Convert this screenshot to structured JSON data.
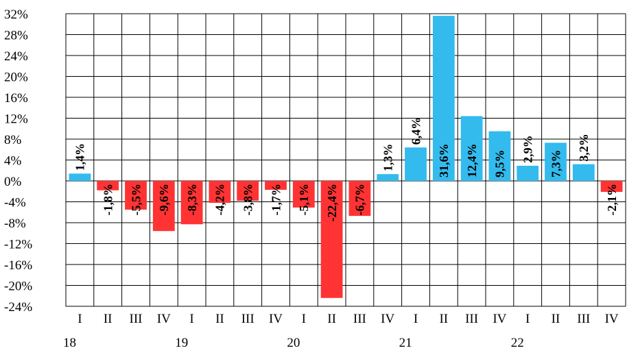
{
  "chart_data": {
    "type": "bar",
    "categories": [
      "I",
      "II",
      "III",
      "IV",
      "I",
      "II",
      "III",
      "IV",
      "I",
      "II",
      "III",
      "IV",
      "I",
      "II",
      "III",
      "IV",
      "I",
      "II",
      "III",
      "IV"
    ],
    "year_labels": [
      {
        "label": "18",
        "index": 0
      },
      {
        "label": "19",
        "index": 4
      },
      {
        "label": "20",
        "index": 8
      },
      {
        "label": "21",
        "index": 12
      },
      {
        "label": "22",
        "index": 16
      }
    ],
    "values": [
      1.4,
      -1.8,
      -5.5,
      -9.6,
      -8.3,
      -4.2,
      -3.8,
      -1.7,
      -5.1,
      -22.4,
      -6.7,
      1.3,
      6.4,
      31.6,
      12.4,
      9.5,
      2.9,
      7.3,
      3.2,
      -2.1
    ],
    "data_labels": [
      "1,4%",
      "-1,8%",
      "-5,5%",
      "-9,6%",
      "-8,3%",
      "-4,2%",
      "-3,8%",
      "-1,7%",
      "-5,1%",
      "-22,4%",
      "-6,7%",
      "1,3%",
      "6,4%",
      "31,6%",
      "12,4%",
      "9,5%",
      "2,9%",
      "7,3%",
      "3,2%",
      "-2,1%"
    ],
    "y_ticks": [
      32,
      28,
      24,
      20,
      16,
      12,
      8,
      4,
      0,
      -4,
      -8,
      -12,
      -16,
      -20,
      -24
    ],
    "y_tick_labels": [
      "32%",
      "28%",
      "24%",
      "20%",
      "16%",
      "12%",
      "8%",
      "4%",
      "0%",
      "-4%",
      "-8%",
      "-12%",
      "-16%",
      "-20%",
      "-24%"
    ],
    "ylim": [
      -24,
      32
    ],
    "grid": true,
    "colors": {
      "positive": "#33bbee",
      "negative": "#ff3333"
    },
    "title": "",
    "xlabel": "",
    "ylabel": ""
  }
}
